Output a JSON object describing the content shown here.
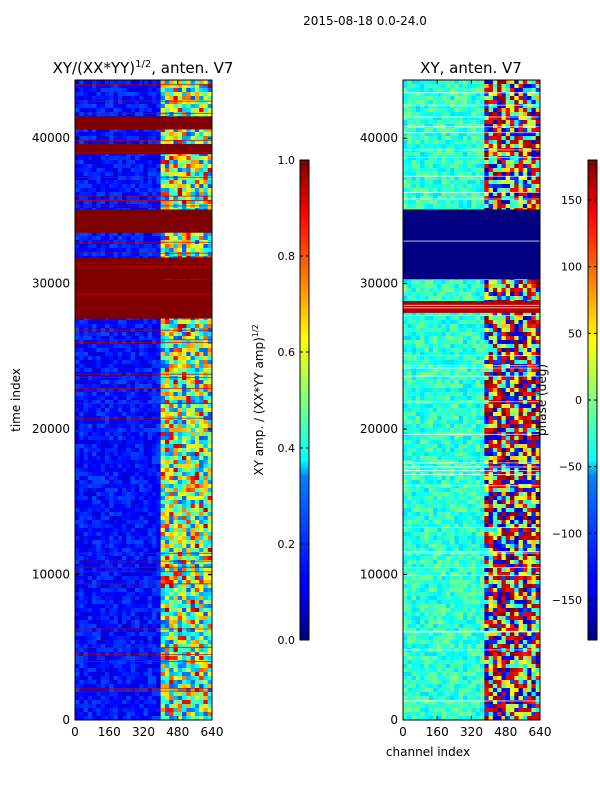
{
  "figure": {
    "suptitle": "2015-08-18 0.0-24.0"
  },
  "chart_data": [
    {
      "type": "heatmap",
      "title": "XY/(XX*YY)^1/2, anten. V7",
      "title_main": "XY/(XX*YY)",
      "title_exp": "1/2",
      "title_rest": ", anten. V7",
      "xlabel": "",
      "ylabel": "time index",
      "xlim": [
        0,
        640
      ],
      "ylim": [
        0,
        44000
      ],
      "xticks": [
        0,
        160,
        320,
        480,
        640
      ],
      "xtick_labels": [
        "0",
        "160",
        "320",
        "480",
        "640"
      ],
      "yticks": [
        0,
        10000,
        20000,
        30000,
        40000
      ],
      "ytick_labels": [
        "0",
        "10000",
        "20000",
        "30000",
        "40000"
      ],
      "colormap": "jet",
      "saturated_bands": [
        [
          27600,
          30300
        ],
        [
          30300,
          31800
        ],
        [
          33500,
          35100
        ],
        [
          38900,
          39600
        ],
        [
          40600,
          41500
        ]
      ],
      "bright_channel_range": [
        400,
        640
      ],
      "colorbar": {
        "label": "XY amp. / (XX*YY amp)^1/2",
        "label_main": "XY amp. / (XX*YY amp)",
        "label_exp": "1/2",
        "range": [
          0.0,
          1.0
        ],
        "ticks": [
          0.0,
          0.2,
          0.4,
          0.6,
          0.8,
          1.0
        ],
        "tick_labels": [
          "0.0",
          "0.2",
          "0.4",
          "0.6",
          "0.8",
          "1.0"
        ]
      }
    },
    {
      "type": "heatmap",
      "title": "XY, anten. V7",
      "xlabel": "channel index",
      "ylabel": "",
      "xlim": [
        0,
        640
      ],
      "ylim": [
        0,
        44000
      ],
      "xticks": [
        0,
        160,
        320,
        480,
        640
      ],
      "xtick_labels": [
        "0",
        "160",
        "320",
        "480",
        "640"
      ],
      "yticks": [
        0,
        10000,
        20000,
        30000,
        40000
      ],
      "ytick_labels": [
        "0",
        "10000",
        "20000",
        "30000",
        "40000"
      ],
      "colormap": "jet",
      "saturated_bands": [
        [
          28000,
          28800
        ],
        [
          30300,
          35100
        ]
      ],
      "bright_channel_range": [
        390,
        640
      ],
      "colorbar": {
        "label": "phase (deg)",
        "range": [
          -180,
          180
        ],
        "ticks": [
          -150,
          -100,
          -50,
          0,
          50,
          100,
          150
        ],
        "tick_labels": [
          "−150",
          "−100",
          "−50",
          "0",
          "50",
          "100",
          "150"
        ]
      }
    }
  ]
}
